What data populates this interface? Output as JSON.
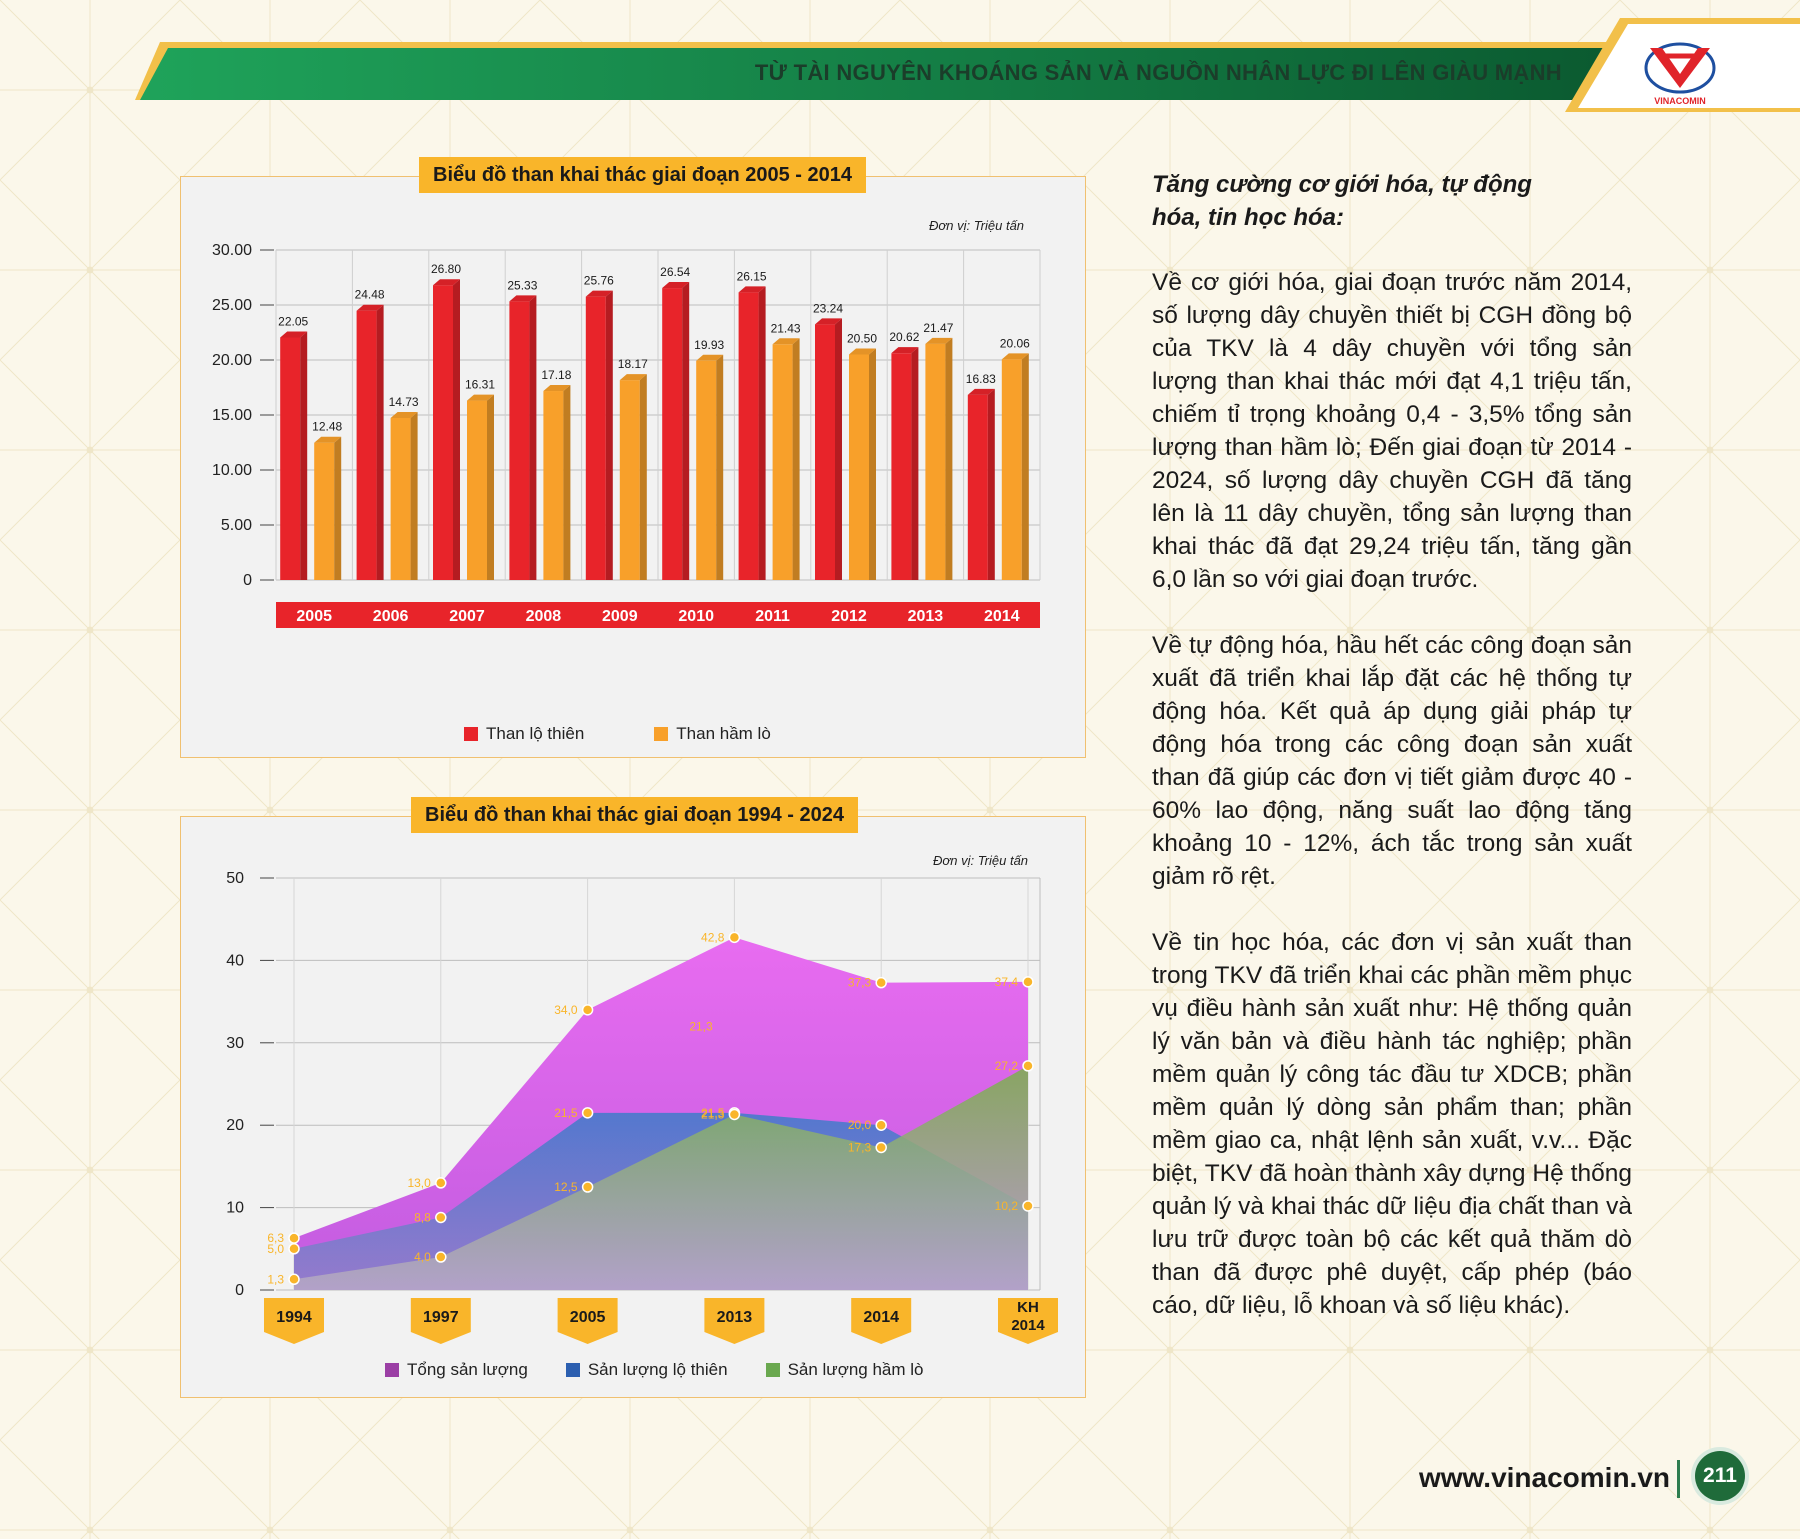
{
  "header": {
    "title": "TỪ TÀI NGUYÊN KHOÁNG SẢN VÀ NGUỒN NHÂN LỰC ĐI LÊN GIÀU MẠNH",
    "logo_text": "VINACOMIN"
  },
  "colors": {
    "green": "#1f8a4c",
    "gold": "#f9b52a",
    "red": "#e8242a",
    "orange": "#f8a02a"
  },
  "chart_data": [
    {
      "type": "bar",
      "title": "Biểu đồ than khai thác giai đoạn 2005 - 2014",
      "unit": "Đơn vị: Triệu tấn",
      "categories": [
        "2005",
        "2006",
        "2007",
        "2008",
        "2009",
        "2010",
        "2011",
        "2012",
        "2013",
        "2014"
      ],
      "series": [
        {
          "name": "Than lộ thiên",
          "color": "#e8242a",
          "values": [
            22.05,
            24.48,
            26.8,
            25.33,
            25.76,
            26.54,
            26.15,
            23.24,
            20.62,
            16.83
          ]
        },
        {
          "name": "Than hầm lò",
          "color": "#f8a02a",
          "values": [
            12.48,
            14.73,
            16.31,
            17.18,
            18.17,
            19.93,
            21.43,
            20.5,
            21.47,
            20.06
          ]
        }
      ],
      "yticks": [
        "0",
        "5.00",
        "10.00",
        "15.00",
        "20.00",
        "25.00",
        "30.00"
      ],
      "ylim": [
        0,
        30
      ],
      "grid": true,
      "legend": "bottom"
    },
    {
      "type": "area",
      "title": "Biểu đồ than khai thác giai đoạn 1994 - 2024",
      "unit": "Đơn vị: Triệu tấn",
      "categories": [
        "1994",
        "1997",
        "2005",
        "2013",
        "2014",
        "KH 2014"
      ],
      "series": [
        {
          "name": "Tổng sản lượng",
          "color": "#e86cf0",
          "values": [
            6.3,
            13.0,
            34.0,
            42.8,
            37.3,
            37.4
          ],
          "labels": [
            "6,3",
            "13,0",
            "34,0",
            "42,8",
            "37,3",
            "37,4"
          ]
        },
        {
          "name": "Sản lượng lộ thiên",
          "color": "#3d6fb5",
          "values": [
            5.0,
            8.8,
            21.5,
            21.5,
            20.0,
            10.2
          ],
          "labels": [
            "5,0",
            "8,8",
            "21,5",
            "21,5",
            "20,0",
            "10,2"
          ]
        },
        {
          "name": "Sản lượng hầm lò",
          "color": "#7ab04a",
          "values": [
            1.3,
            4.0,
            12.5,
            21.3,
            17.3,
            27.2
          ],
          "labels": [
            "1,3",
            "4,0",
            "12,5",
            "21,3",
            "17,3",
            "27,2"
          ]
        }
      ],
      "annotation": "21,3",
      "yticks": [
        "0",
        "10",
        "20",
        "30",
        "40",
        "50"
      ],
      "ylim": [
        0,
        50
      ],
      "grid": true,
      "legend": "bottom"
    }
  ],
  "text": {
    "heading": "Tăng cường cơ giới hóa, tự động hóa, tin học hóa:",
    "p1": "Về cơ giới hóa, giai đoạn trước năm 2014, số lượng dây chuyền thiết bị CGH đồng bộ của TKV là 4 dây chuyền với tổng sản lượng than khai thác mới đạt 4,1 triệu tấn, chiếm tỉ trọng khoảng 0,4 - 3,5% tổng sản lượng than hầm lò; Đến giai đoạn từ 2014 - 2024, số lượng dây chuyền CGH đã tăng lên là 11 dây chuyền, tổng sản lượng than khai thác đã đạt 29,24 triệu tấn, tăng gần 6,0 lần so với giai đoạn trước.",
    "p2": "Về tự động hóa, hầu hết các công đoạn sản xuất đã triển khai lắp đặt các hệ thống tự động hóa. Kết quả áp dụng giải pháp tự động hóa trong các công đoạn sản xuất than đã giúp các đơn vị tiết giảm được 40 - 60% lao động, năng suất lao động tăng khoảng 10 - 12%, ách tắc trong sản xuất giảm rõ rệt.",
    "p3": "Về tin học hóa, các đơn vị sản xuất than trong TKV đã triển khai các phần mềm phục vụ điều hành sản xuất như: Hệ thống quản lý văn bản và điều hành tác nghiệp; phần mềm quản lý công tác đầu tư XDCB; phần mềm quản lý dòng sản phẩm than; phần mềm giao ca, nhật lệnh sản xuất, v.v... Đặc biệt, TKV đã hoàn thành xây dựng Hệ thống quản lý và khai thác dữ liệu địa chất than và lưu trữ được toàn bộ các kết quả thăm dò than đã được phê duyệt, cấp phép (báo cáo, dữ liệu, lỗ khoan và số liệu khác)."
  },
  "footer": {
    "url": "www.vinacomin.vn",
    "page": "211"
  }
}
